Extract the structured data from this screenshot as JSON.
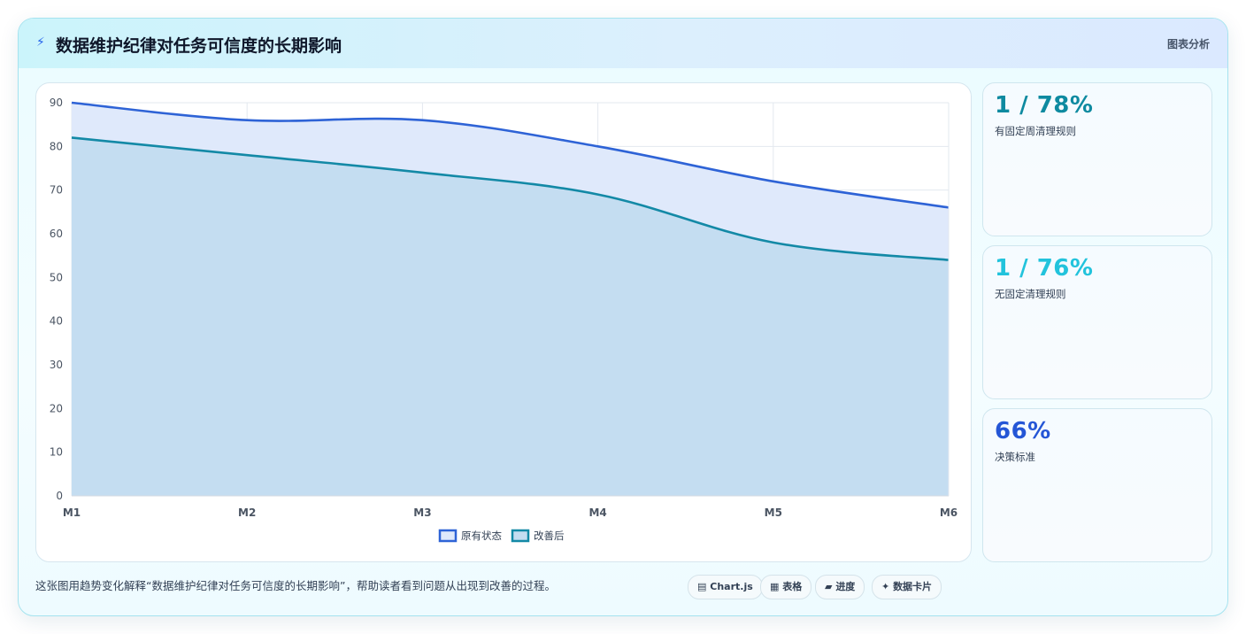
{
  "header": {
    "icon": "bolt-icon",
    "title": "数据维护纪律对任务可信度的长期影响",
    "tag": "图表分析"
  },
  "kpis": [
    {
      "value": "1 / 78%",
      "label": "有固定周清理规则",
      "color": "#0e8aa0"
    },
    {
      "value": "1 / 76%",
      "label": "无固定清理规则",
      "color": "#22c3dc"
    },
    {
      "value": "66%",
      "label": "决策标准",
      "color": "#2556d6"
    }
  ],
  "caption": "这张图用趋势变化解释“数据维护纪律对任务可信度的长期影响”，帮助读者看到问题从出现到改善的过程。",
  "chips": [
    {
      "icon": "▤",
      "label": "Chart.js"
    },
    {
      "icon": "▦",
      "label": "表格"
    },
    {
      "icon": "▰",
      "label": "进度"
    },
    {
      "icon": "✦",
      "label": "数据卡片"
    }
  ],
  "chart_data": {
    "type": "area",
    "categories": [
      "M1",
      "M2",
      "M3",
      "M4",
      "M5",
      "M6"
    ],
    "series": [
      {
        "name": "原有状态",
        "values": [
          90,
          86,
          86,
          80,
          72,
          66
        ],
        "color": "#2e63d6",
        "fill": "#dfe9fb"
      },
      {
        "name": "改善后",
        "values": [
          82,
          78,
          74,
          69,
          58,
          54
        ],
        "color": "#1389a6",
        "fill": "#c4ddf1"
      }
    ],
    "ylim": [
      0,
      90
    ],
    "yticks": [
      0,
      10,
      20,
      30,
      40,
      50,
      60,
      70,
      80,
      90
    ],
    "grid": true,
    "legend": "bottom"
  }
}
